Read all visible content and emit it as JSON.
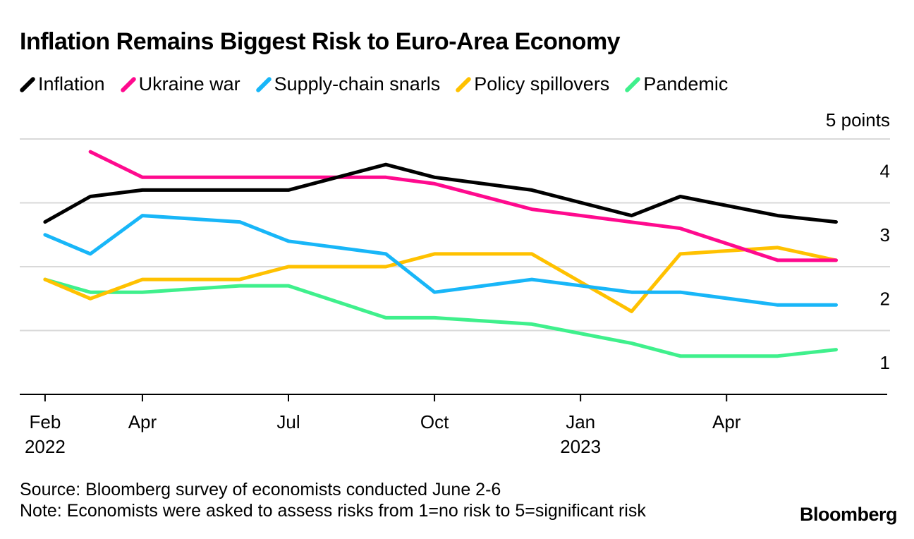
{
  "chart_data": {
    "type": "line",
    "title": "Inflation Remains Biggest Risk to Euro-Area Economy",
    "y_unit_label": "5 points",
    "ylim": [
      1,
      5
    ],
    "y_ticks": [
      2,
      3,
      4
    ],
    "y_tick_labels": [
      "1",
      "2",
      "3",
      "4"
    ],
    "x_ticks": [
      {
        "month": 0,
        "label": "Feb",
        "sub": "2022"
      },
      {
        "month": 2,
        "label": "Apr",
        "sub": ""
      },
      {
        "month": 5,
        "label": "Jul",
        "sub": ""
      },
      {
        "month": 8,
        "label": "Oct",
        "sub": ""
      },
      {
        "month": 11,
        "label": "Jan",
        "sub": "2023"
      },
      {
        "month": 14,
        "label": "Apr",
        "sub": ""
      }
    ],
    "x_domain": [
      -0.52,
      17.3
    ],
    "series": [
      {
        "name": "Inflation",
        "color": "#000000",
        "points": [
          [
            0,
            3.7
          ],
          [
            0.93,
            4.1
          ],
          [
            2,
            4.2
          ],
          [
            5,
            4.2
          ],
          [
            7,
            4.6
          ],
          [
            8,
            4.4
          ],
          [
            10,
            4.2
          ],
          [
            12.05,
            3.8
          ],
          [
            13.05,
            4.1
          ],
          [
            15.05,
            3.8
          ],
          [
            16.25,
            3.7
          ]
        ]
      },
      {
        "name": "Ukraine war",
        "color": "#FF0A8E",
        "points": [
          [
            0.93,
            4.8
          ],
          [
            2,
            4.4
          ],
          [
            7,
            4.4
          ],
          [
            8,
            4.3
          ],
          [
            10,
            3.9
          ],
          [
            13.05,
            3.6
          ],
          [
            15.05,
            3.1
          ],
          [
            16.25,
            3.1
          ]
        ]
      },
      {
        "name": "Supply-chain snarls",
        "color": "#18B6F8",
        "points": [
          [
            0,
            3.5
          ],
          [
            0.93,
            3.2
          ],
          [
            2,
            3.8
          ],
          [
            4,
            3.7
          ],
          [
            5,
            3.4
          ],
          [
            7,
            3.2
          ],
          [
            8,
            2.6
          ],
          [
            10,
            2.8
          ],
          [
            12.05,
            2.6
          ],
          [
            13.05,
            2.6
          ],
          [
            15.05,
            2.4
          ],
          [
            16.25,
            2.4
          ]
        ]
      },
      {
        "name": "Policy spillovers",
        "color": "#FFC100",
        "points": [
          [
            0,
            2.8
          ],
          [
            0.93,
            2.5
          ],
          [
            2,
            2.8
          ],
          [
            4,
            2.8
          ],
          [
            5,
            3.0
          ],
          [
            7,
            3.0
          ],
          [
            8,
            3.2
          ],
          [
            10,
            3.2
          ],
          [
            12.05,
            2.3
          ],
          [
            13.05,
            3.2
          ],
          [
            15.05,
            3.3
          ],
          [
            16.25,
            3.1
          ]
        ]
      },
      {
        "name": "Pandemic",
        "color": "#3FF08C",
        "points": [
          [
            0,
            2.8
          ],
          [
            0.93,
            2.6
          ],
          [
            2,
            2.6
          ],
          [
            4,
            2.7
          ],
          [
            5,
            2.7
          ],
          [
            7,
            2.2
          ],
          [
            8,
            2.2
          ],
          [
            10,
            2.1
          ],
          [
            12.05,
            1.8
          ],
          [
            13.05,
            1.6
          ],
          [
            15.05,
            1.6
          ],
          [
            16.25,
            1.7
          ]
        ]
      }
    ]
  },
  "footer": {
    "source": "Source: Bloomberg survey of economists conducted June 2-6",
    "note": "Note: Economists were asked to assess risks from 1=no risk to 5=significant risk",
    "brand": "Bloomberg"
  }
}
